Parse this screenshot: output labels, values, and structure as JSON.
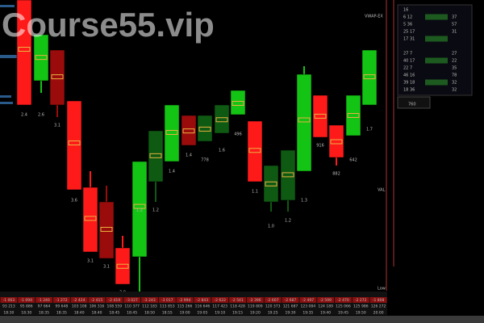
{
  "watermark": "Course55.vip",
  "candle_labels": [
    "2.4",
    "2.6",
    "3.1",
    "3.6",
    "3.1",
    "3.1",
    "3.0",
    "1.2",
    "1.2",
    "1.4",
    "1.4",
    "778",
    "1.6",
    "496",
    "1.1",
    "1.0",
    "1.2",
    "1.3",
    "916",
    "882",
    "642",
    "1.7"
  ],
  "footer": {
    "delta": [
      "-1 063",
      "-1 094",
      "-1 240",
      "-1 272",
      "-2 424",
      "-2 415",
      "-2 419",
      "-3 027",
      "-3 243",
      "-3 017",
      "-2 994",
      "-2 843",
      "-2 622",
      "-2 541",
      "-2 396",
      "-2 607",
      "-2 687",
      "-2 497",
      "-2 599",
      "-2 470",
      "-2 272",
      "-1 808"
    ],
    "cumulative": [
      "93 213",
      "95 886",
      "97 664",
      "99 648",
      "103 108",
      "106 316",
      "108 559",
      "110 377",
      "112 183",
      "113 853",
      "115 266",
      "116 646",
      "117 423",
      "118 428",
      "119 809",
      "120 373",
      "121 687",
      "123 084",
      "124 189",
      "125 066",
      "125 986",
      "126 272"
    ],
    "times": [
      "18:30",
      "18:30",
      "18:35",
      "18:35",
      "18:40",
      "18:40",
      "18:45",
      "18:45",
      "18:50",
      "18:55",
      "19:00",
      "19:05",
      "19:10",
      "19:15",
      "19:20",
      "19:25",
      "19:30",
      "19:35",
      "19:40",
      "19:45",
      "19:50",
      "20:00"
    ]
  },
  "side_labels": {
    "top": "VWAP-EX",
    "val": "VAL",
    "low": "Low"
  },
  "ladder": {
    "rows": [
      [
        "16",
        "",
        ""
      ],
      [
        "6 12",
        "",
        "37"
      ],
      [
        "5 36",
        "",
        "57"
      ],
      [
        "25 17",
        "",
        "31"
      ],
      [
        "17 31",
        "",
        ""
      ],
      [
        "",
        "",
        ""
      ],
      [
        "27 7",
        "",
        "27"
      ],
      [
        "40 17",
        "",
        "22"
      ],
      [
        "22 7",
        "",
        "35"
      ],
      [
        "46 16",
        "",
        "78"
      ],
      [
        "39 18",
        "",
        "32"
      ],
      [
        "18 36",
        "",
        "32"
      ]
    ],
    "footer": "760"
  }
}
